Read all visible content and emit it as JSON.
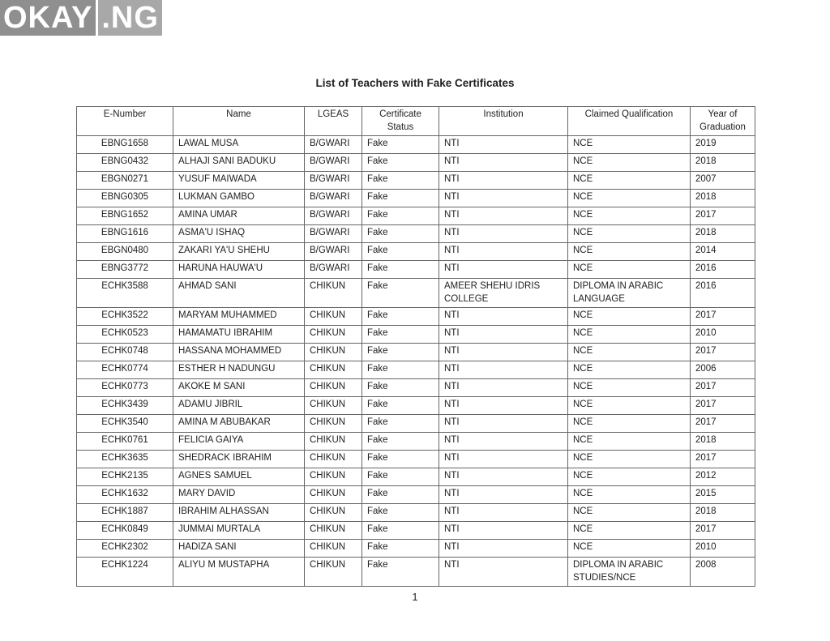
{
  "logo": {
    "text": "OKAY",
    "suffix": ".NG"
  },
  "title": "List of Teachers with Fake Certificates",
  "columns": [
    "E-Number",
    "Name",
    "LGEAS",
    "Certificate Status",
    "Institution",
    "Claimed Qualification",
    "Year of Graduation"
  ],
  "rows": [
    [
      "EBNG1658",
      "LAWAL MUSA",
      "B/GWARI",
      "Fake",
      "NTI",
      "NCE",
      "2019"
    ],
    [
      "EBNG0432",
      "ALHAJI SANI BADUKU",
      "B/GWARI",
      "Fake",
      "NTI",
      "NCE",
      "2018"
    ],
    [
      "EBGN0271",
      "YUSUF MAIWADA",
      "B/GWARI",
      "Fake",
      "NTI",
      "NCE",
      "2007"
    ],
    [
      "EBNG0305",
      "LUKMAN GAMBO",
      "B/GWARI",
      "Fake",
      "NTI",
      "NCE",
      "2018"
    ],
    [
      "EBNG1652",
      "AMINA UMAR",
      "B/GWARI",
      "Fake",
      "NTI",
      "NCE",
      "2017"
    ],
    [
      "EBNG1616",
      "ASMA'U ISHAQ",
      "B/GWARI",
      "Fake",
      "NTI",
      "NCE",
      "2018"
    ],
    [
      "EBGN0480",
      "ZAKARI YA'U SHEHU",
      "B/GWARI",
      "Fake",
      "NTI",
      "NCE",
      "2014"
    ],
    [
      "EBNG3772",
      "HARUNA HAUWA'U",
      "B/GWARI",
      "Fake",
      "NTI",
      "NCE",
      "2016"
    ],
    [
      "ECHK3588",
      "AHMAD SANI",
      "CHIKUN",
      "Fake",
      "AMEER SHEHU IDRIS COLLEGE",
      "DIPLOMA IN ARABIC LANGUAGE",
      "2016"
    ],
    [
      "ECHK3522",
      "MARYAM MUHAMMED",
      "CHIKUN",
      "Fake",
      "NTI",
      "NCE",
      "2017"
    ],
    [
      "ECHK0523",
      "HAMAMATU IBRAHIM",
      "CHIKUN",
      "Fake",
      "NTI",
      "NCE",
      "2010"
    ],
    [
      "ECHK0748",
      "HASSANA MOHAMMED",
      "CHIKUN",
      "Fake",
      "NTI",
      "NCE",
      "2017"
    ],
    [
      "ECHK0774",
      "ESTHER H NADUNGU",
      "CHIKUN",
      "Fake",
      "NTI",
      "NCE",
      "2006"
    ],
    [
      "ECHK0773",
      "AKOKE M SANI",
      "CHIKUN",
      "Fake",
      "NTI",
      "NCE",
      "2017"
    ],
    [
      "ECHK3439",
      "ADAMU JIBRIL",
      "CHIKUN",
      "Fake",
      "NTI",
      "NCE",
      "2017"
    ],
    [
      "ECHK3540",
      "AMINA M ABUBAKAR",
      "CHIKUN",
      "Fake",
      "NTI",
      "NCE",
      "2017"
    ],
    [
      "ECHK0761",
      "FELICIA GAIYA",
      "CHIKUN",
      "Fake",
      "NTI",
      "NCE",
      "2018"
    ],
    [
      "ECHK3635",
      "SHEDRACK IBRAHIM",
      "CHIKUN",
      "Fake",
      "NTI",
      "NCE",
      "2017"
    ],
    [
      "ECHK2135",
      "AGNES SAMUEL",
      "CHIKUN",
      "Fake",
      "NTI",
      "NCE",
      "2012"
    ],
    [
      "ECHK1632",
      "MARY DAVID",
      "CHIKUN",
      "Fake",
      "NTI",
      "NCE",
      "2015"
    ],
    [
      "ECHK1887",
      "IBRAHIM ALHASSAN",
      "CHIKUN",
      "Fake",
      "NTI",
      "NCE",
      "2018"
    ],
    [
      "ECHK0849",
      "JUMMAI MURTALA",
      "CHIKUN",
      "Fake",
      "NTI",
      "NCE",
      "2017"
    ],
    [
      "ECHK2302",
      "HADIZA SANI",
      "CHIKUN",
      "Fake",
      "NTI",
      "NCE",
      "2010"
    ],
    [
      "ECHK1224",
      "ALIYU M MUSTAPHA",
      "CHIKUN",
      "Fake",
      "NTI",
      "DIPLOMA IN ARABIC STUDIES/NCE",
      "2008"
    ]
  ],
  "page_number": "1"
}
